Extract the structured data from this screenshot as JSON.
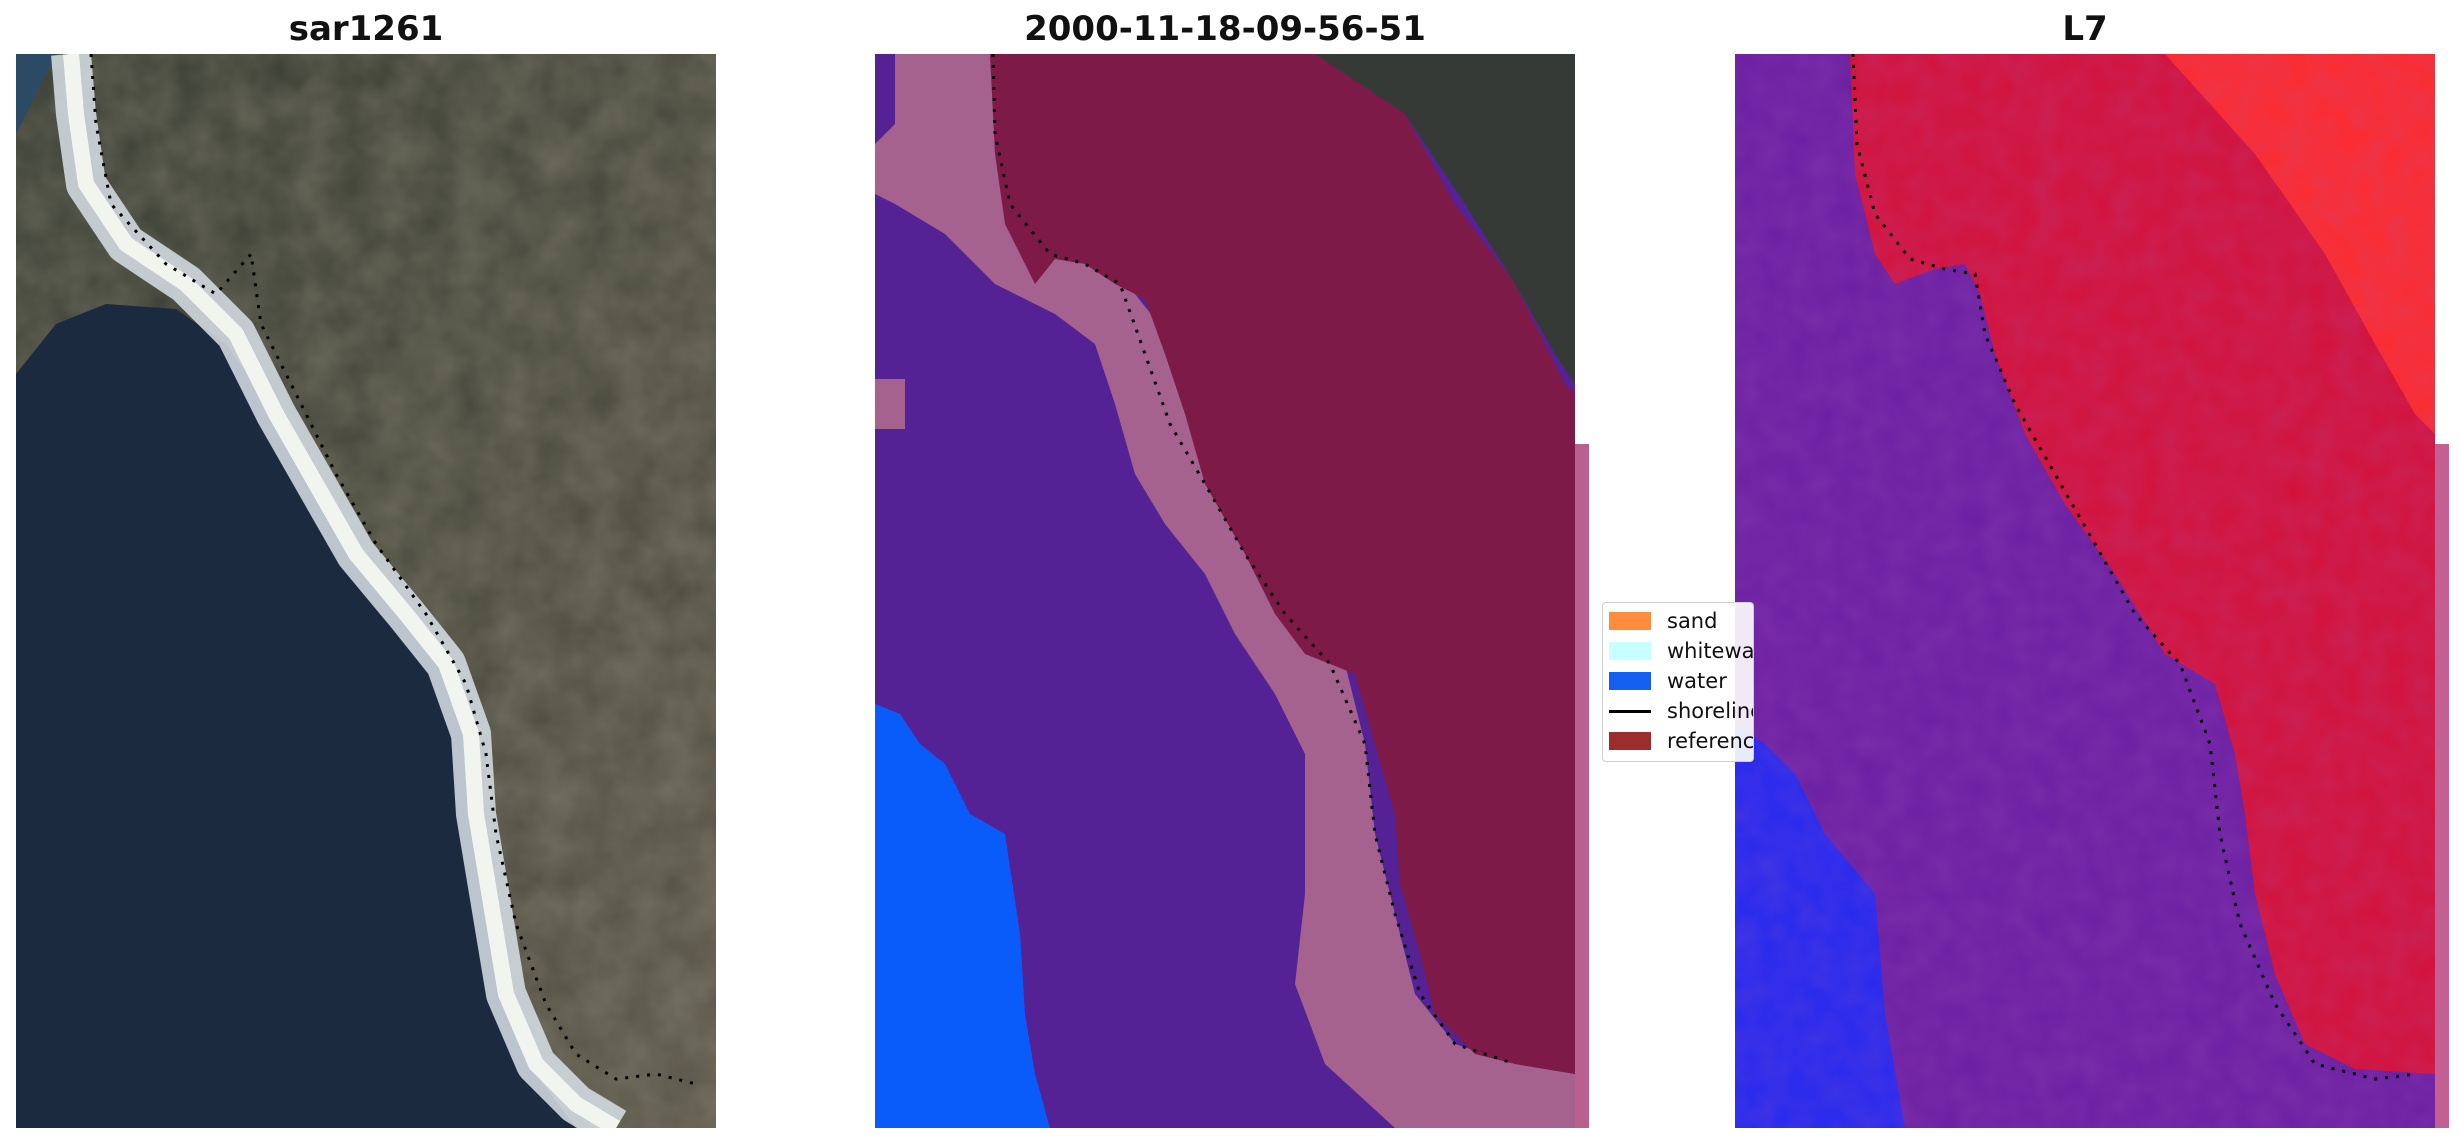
{
  "panels": [
    {
      "title": "sar1261"
    },
    {
      "title": "2000-11-18-09-56-51"
    },
    {
      "title": "L7"
    }
  ],
  "legend": {
    "items": [
      {
        "label": "sand",
        "color": "#ff8c3c"
      },
      {
        "label": "whitewater",
        "color": "#c8ffff"
      },
      {
        "label": "water",
        "color": "#1560f0"
      },
      {
        "label": "shoreline",
        "color": "#000000"
      },
      {
        "label": "reference",
        "color": "#9b2d2d"
      }
    ]
  },
  "colors": {
    "dark_land": "#3a3d3a",
    "water_dark": "#1b2a42",
    "whitewater_class": "#a5628f",
    "water_class": "#542294",
    "deep_water_class": "#0a5cfa",
    "land_class": "#7e1a47",
    "l7_red": "#d41037",
    "l7_purple": "#6a1fa2",
    "l7_blue": "#2228f0"
  }
}
